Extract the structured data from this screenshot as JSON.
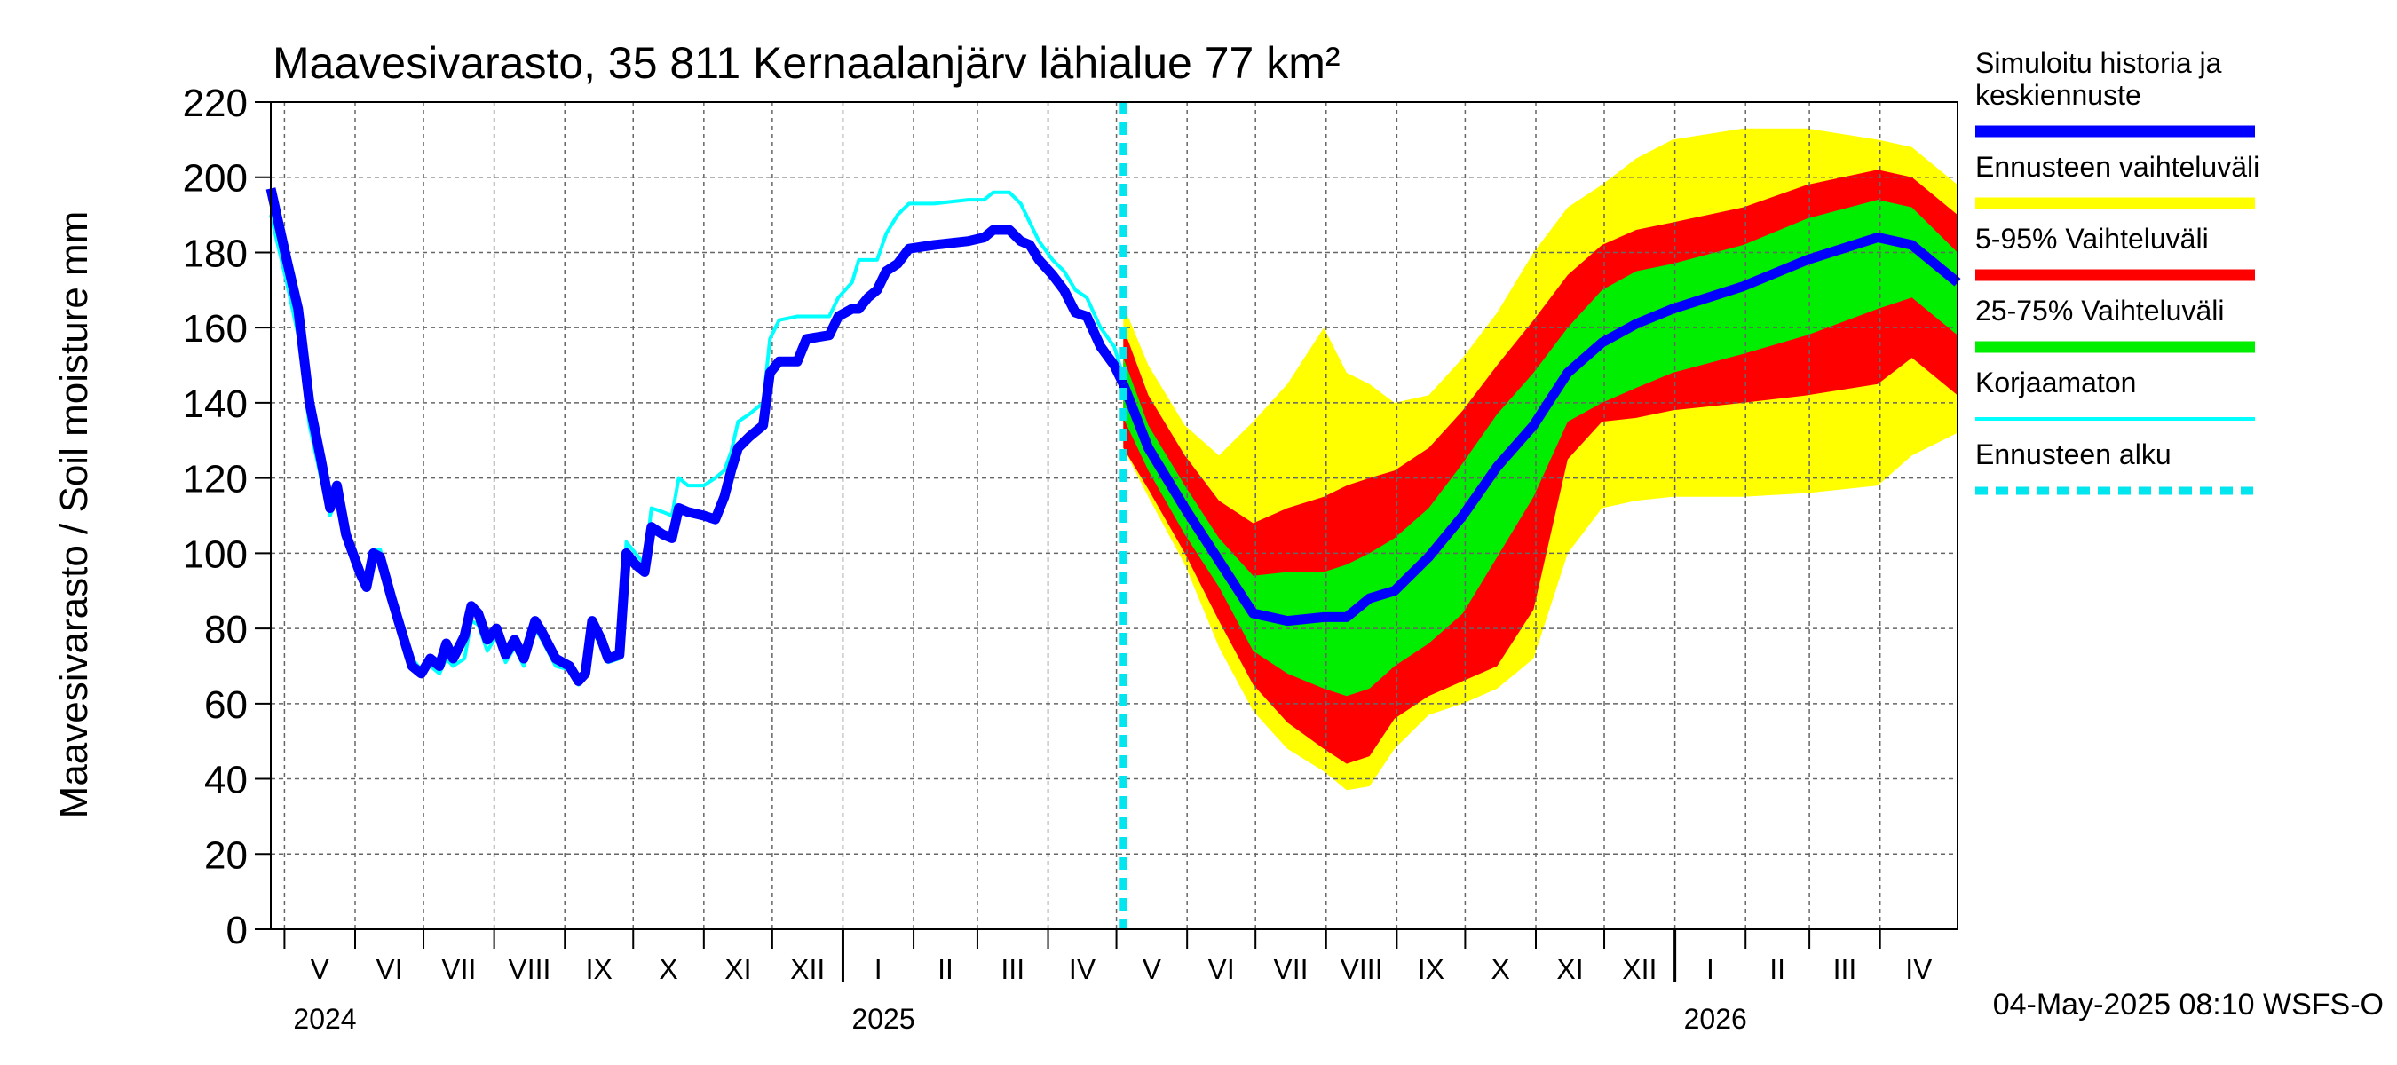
{
  "chart_data": {
    "type": "area",
    "title": "Maavesivarasto, 35 811 Kernaalanjärv lähialue 77 km²",
    "ylabel": "Maavesivarasto / Soil moisture   mm",
    "ylim": [
      0,
      220
    ],
    "yticks": [
      0,
      20,
      40,
      60,
      80,
      100,
      120,
      140,
      160,
      180,
      200,
      220
    ],
    "xlim": [
      "2024-04-25",
      "2026-05-05"
    ],
    "grid": true,
    "legend_position": "right",
    "months": [
      {
        "label": "V",
        "start": "2024-05-01"
      },
      {
        "label": "VI",
        "start": "2024-06-01"
      },
      {
        "label": "VII",
        "start": "2024-07-01"
      },
      {
        "label": "VIII",
        "start": "2024-08-01"
      },
      {
        "label": "IX",
        "start": "2024-09-01"
      },
      {
        "label": "X",
        "start": "2024-10-01"
      },
      {
        "label": "XI",
        "start": "2024-11-01"
      },
      {
        "label": "XII",
        "start": "2024-12-01"
      },
      {
        "label": "I",
        "start": "2025-01-01"
      },
      {
        "label": "II",
        "start": "2025-02-01"
      },
      {
        "label": "III",
        "start": "2025-03-01"
      },
      {
        "label": "IV",
        "start": "2025-04-01"
      },
      {
        "label": "V",
        "start": "2025-05-01"
      },
      {
        "label": "VI",
        "start": "2025-06-01"
      },
      {
        "label": "VII",
        "start": "2025-07-01"
      },
      {
        "label": "VIII",
        "start": "2025-08-01"
      },
      {
        "label": "IX",
        "start": "2025-09-01"
      },
      {
        "label": "X",
        "start": "2025-10-01"
      },
      {
        "label": "XI",
        "start": "2025-11-01"
      },
      {
        "label": "XII",
        "start": "2025-12-01"
      },
      {
        "label": "I",
        "start": "2026-01-01"
      },
      {
        "label": "II",
        "start": "2026-02-01"
      },
      {
        "label": "III",
        "start": "2026-03-01"
      },
      {
        "label": "IV",
        "start": "2026-04-01"
      }
    ],
    "years": [
      {
        "label": "2024",
        "date": "2024-05-01"
      },
      {
        "label": "2025",
        "date": "2025-01-01"
      },
      {
        "label": "2026",
        "date": "2026-01-01"
      }
    ],
    "forecast_start": "2025-05-04",
    "colors": {
      "simulated": "#0000ff",
      "range_full": "#ffff00",
      "range_5_95": "#ff0000",
      "range_25_75": "#00ee00",
      "uncorrected": "#00ffff",
      "forecast_start": "#00e5ee",
      "grid": "#666666"
    },
    "legend": [
      {
        "key": "simulated",
        "label_lines": [
          "Simuloitu historia ja",
          "keskiennuste"
        ],
        "style": "thick"
      },
      {
        "key": "range_full",
        "label_lines": [
          "Ennusteen vaihteluväli"
        ],
        "style": "thick"
      },
      {
        "key": "range_5_95",
        "label_lines": [
          "5-95% Vaihteluväli"
        ],
        "style": "thick"
      },
      {
        "key": "range_25_75",
        "label_lines": [
          "25-75% Vaihteluväli"
        ],
        "style": "thick"
      },
      {
        "key": "uncorrected",
        "label_lines": [
          "Korjaamaton"
        ],
        "style": "thin"
      },
      {
        "key": "forecast_start",
        "label_lines": [
          "Ennusteen alku"
        ],
        "style": "dashed"
      }
    ],
    "history": [
      {
        "d": "2024-04-25",
        "sim": 197,
        "unc": 190
      },
      {
        "d": "2024-05-02",
        "sim": 178,
        "unc": 172
      },
      {
        "d": "2024-05-07",
        "sim": 165,
        "unc": 158
      },
      {
        "d": "2024-05-12",
        "sim": 140,
        "unc": 134
      },
      {
        "d": "2024-05-17",
        "sim": 125,
        "unc": 120
      },
      {
        "d": "2024-05-21",
        "sim": 112,
        "unc": 110
      },
      {
        "d": "2024-05-24",
        "sim": 118,
        "unc": 115
      },
      {
        "d": "2024-05-28",
        "sim": 105,
        "unc": 103
      },
      {
        "d": "2024-06-03",
        "sim": 95,
        "unc": 94
      },
      {
        "d": "2024-06-06",
        "sim": 91,
        "unc": 92
      },
      {
        "d": "2024-06-09",
        "sim": 100,
        "unc": 101
      },
      {
        "d": "2024-06-12",
        "sim": 99,
        "unc": 101
      },
      {
        "d": "2024-06-17",
        "sim": 88,
        "unc": 90
      },
      {
        "d": "2024-06-22",
        "sim": 78,
        "unc": 80
      },
      {
        "d": "2024-06-26",
        "sim": 70,
        "unc": 72
      },
      {
        "d": "2024-06-30",
        "sim": 68,
        "unc": 69
      },
      {
        "d": "2024-07-04",
        "sim": 72,
        "unc": 70
      },
      {
        "d": "2024-07-08",
        "sim": 70,
        "unc": 68
      },
      {
        "d": "2024-07-11",
        "sim": 76,
        "unc": 72
      },
      {
        "d": "2024-07-14",
        "sim": 72,
        "unc": 70
      },
      {
        "d": "2024-07-19",
        "sim": 78,
        "unc": 72
      },
      {
        "d": "2024-07-22",
        "sim": 86,
        "unc": 82
      },
      {
        "d": "2024-07-25",
        "sim": 84,
        "unc": 81
      },
      {
        "d": "2024-07-29",
        "sim": 77,
        "unc": 74
      },
      {
        "d": "2024-08-02",
        "sim": 80,
        "unc": 78
      },
      {
        "d": "2024-08-06",
        "sim": 73,
        "unc": 71
      },
      {
        "d": "2024-08-10",
        "sim": 77,
        "unc": 75
      },
      {
        "d": "2024-08-14",
        "sim": 72,
        "unc": 70
      },
      {
        "d": "2024-08-19",
        "sim": 82,
        "unc": 80
      },
      {
        "d": "2024-08-22",
        "sim": 79,
        "unc": 77
      },
      {
        "d": "2024-08-28",
        "sim": 72,
        "unc": 70
      },
      {
        "d": "2024-09-03",
        "sim": 70,
        "unc": 69
      },
      {
        "d": "2024-09-07",
        "sim": 66,
        "unc": 65
      },
      {
        "d": "2024-09-10",
        "sim": 68,
        "unc": 67
      },
      {
        "d": "2024-09-13",
        "sim": 82,
        "unc": 80
      },
      {
        "d": "2024-09-17",
        "sim": 77,
        "unc": 75
      },
      {
        "d": "2024-09-20",
        "sim": 72,
        "unc": 71
      },
      {
        "d": "2024-09-25",
        "sim": 73,
        "unc": 72
      },
      {
        "d": "2024-09-28",
        "sim": 100,
        "unc": 103
      },
      {
        "d": "2024-10-02",
        "sim": 97,
        "unc": 100
      },
      {
        "d": "2024-10-06",
        "sim": 95,
        "unc": 97
      },
      {
        "d": "2024-10-09",
        "sim": 107,
        "unc": 112
      },
      {
        "d": "2024-10-14",
        "sim": 105,
        "unc": 111
      },
      {
        "d": "2024-10-18",
        "sim": 104,
        "unc": 110
      },
      {
        "d": "2024-10-21",
        "sim": 112,
        "unc": 120
      },
      {
        "d": "2024-10-25",
        "sim": 111,
        "unc": 118
      },
      {
        "d": "2024-11-01",
        "sim": 110,
        "unc": 118
      },
      {
        "d": "2024-11-06",
        "sim": 109,
        "unc": 120
      },
      {
        "d": "2024-11-10",
        "sim": 115,
        "unc": 122
      },
      {
        "d": "2024-11-13",
        "sim": 122,
        "unc": 127
      },
      {
        "d": "2024-11-16",
        "sim": 128,
        "unc": 135
      },
      {
        "d": "2024-11-21",
        "sim": 131,
        "unc": 137
      },
      {
        "d": "2024-11-27",
        "sim": 134,
        "unc": 140
      },
      {
        "d": "2024-11-30",
        "sim": 148,
        "unc": 157
      },
      {
        "d": "2024-12-04",
        "sim": 151,
        "unc": 162
      },
      {
        "d": "2024-12-12",
        "sim": 151,
        "unc": 163
      },
      {
        "d": "2024-12-16",
        "sim": 157,
        "unc": 163
      },
      {
        "d": "2024-12-26",
        "sim": 158,
        "unc": 163
      },
      {
        "d": "2024-12-30",
        "sim": 163,
        "unc": 168
      },
      {
        "d": "2025-01-05",
        "sim": 165,
        "unc": 172
      },
      {
        "d": "2025-01-08",
        "sim": 165,
        "unc": 178
      },
      {
        "d": "2025-01-12",
        "sim": 168,
        "unc": 178
      },
      {
        "d": "2025-01-16",
        "sim": 170,
        "unc": 178
      },
      {
        "d": "2025-01-20",
        "sim": 175,
        "unc": 185
      },
      {
        "d": "2025-01-25",
        "sim": 177,
        "unc": 190
      },
      {
        "d": "2025-01-30",
        "sim": 181,
        "unc": 193
      },
      {
        "d": "2025-02-10",
        "sim": 182,
        "unc": 193
      },
      {
        "d": "2025-02-25",
        "sim": 183,
        "unc": 194
      },
      {
        "d": "2025-03-04",
        "sim": 184,
        "unc": 194
      },
      {
        "d": "2025-03-08",
        "sim": 186,
        "unc": 196
      },
      {
        "d": "2025-03-15",
        "sim": 186,
        "unc": 196
      },
      {
        "d": "2025-03-20",
        "sim": 183,
        "unc": 193
      },
      {
        "d": "2025-03-24",
        "sim": 182,
        "unc": 188
      },
      {
        "d": "2025-03-28",
        "sim": 178,
        "unc": 183
      },
      {
        "d": "2025-04-03",
        "sim": 174,
        "unc": 178
      },
      {
        "d": "2025-04-08",
        "sim": 170,
        "unc": 175
      },
      {
        "d": "2025-04-13",
        "sim": 164,
        "unc": 170
      },
      {
        "d": "2025-04-18",
        "sim": 163,
        "unc": 168
      },
      {
        "d": "2025-04-24",
        "sim": 155,
        "unc": 160
      },
      {
        "d": "2025-04-30",
        "sim": 150,
        "unc": 155
      },
      {
        "d": "2025-05-04",
        "sim": 145,
        "unc": 147
      }
    ],
    "forecast": [
      {
        "d": "2025-05-04",
        "min": 128,
        "p05": 128,
        "p25": 136,
        "med": 145,
        "p75": 152,
        "p95": 160,
        "max": 166
      },
      {
        "d": "2025-05-15",
        "min": 115,
        "p05": 117,
        "p25": 122,
        "med": 128,
        "p75": 134,
        "p95": 142,
        "max": 150
      },
      {
        "d": "2025-05-31",
        "min": 97,
        "p05": 100,
        "p25": 105,
        "med": 112,
        "p75": 118,
        "p95": 126,
        "max": 134
      },
      {
        "d": "2025-06-15",
        "min": 75,
        "p05": 82,
        "p25": 91,
        "med": 98,
        "p75": 104,
        "p95": 114,
        "max": 126
      },
      {
        "d": "2025-06-30",
        "min": 58,
        "p05": 65,
        "p25": 74,
        "med": 84,
        "p75": 94,
        "p95": 108,
        "max": 135
      },
      {
        "d": "2025-07-15",
        "min": 48,
        "p05": 55,
        "p25": 68,
        "med": 82,
        "p75": 95,
        "p95": 112,
        "max": 145
      },
      {
        "d": "2025-07-31",
        "min": 42,
        "p05": 48,
        "p25": 64,
        "med": 83,
        "p75": 95,
        "p95": 115,
        "max": 160
      },
      {
        "d": "2025-08-10",
        "min": 37,
        "p05": 44,
        "p25": 62,
        "med": 83,
        "p75": 97,
        "p95": 118,
        "max": 148
      },
      {
        "d": "2025-08-20",
        "min": 38,
        "p05": 46,
        "p25": 64,
        "med": 88,
        "p75": 100,
        "p95": 120,
        "max": 145
      },
      {
        "d": "2025-08-31",
        "min": 48,
        "p05": 56,
        "p25": 70,
        "med": 90,
        "p75": 104,
        "p95": 122,
        "max": 140
      },
      {
        "d": "2025-09-15",
        "min": 57,
        "p05": 62,
        "p25": 76,
        "med": 99,
        "p75": 112,
        "p95": 128,
        "max": 142
      },
      {
        "d": "2025-09-30",
        "min": 60,
        "p05": 66,
        "p25": 84,
        "med": 110,
        "p75": 124,
        "p95": 138,
        "max": 152
      },
      {
        "d": "2025-10-15",
        "min": 64,
        "p05": 70,
        "p25": 99,
        "med": 123,
        "p75": 137,
        "p95": 150,
        "max": 164
      },
      {
        "d": "2025-10-31",
        "min": 72,
        "p05": 85,
        "p25": 115,
        "med": 134,
        "p75": 148,
        "p95": 162,
        "max": 180
      },
      {
        "d": "2025-11-15",
        "min": 100,
        "p05": 125,
        "p25": 135,
        "med": 148,
        "p75": 160,
        "p95": 174,
        "max": 192
      },
      {
        "d": "2025-11-30",
        "min": 112,
        "p05": 135,
        "p25": 140,
        "med": 156,
        "p75": 170,
        "p95": 182,
        "max": 198
      },
      {
        "d": "2025-12-15",
        "min": 114,
        "p05": 136,
        "p25": 144,
        "med": 161,
        "p75": 175,
        "p95": 186,
        "max": 205
      },
      {
        "d": "2025-12-31",
        "min": 115,
        "p05": 138,
        "p25": 148,
        "med": 165,
        "p75": 177,
        "p95": 188,
        "max": 210
      },
      {
        "d": "2026-01-31",
        "min": 115,
        "p05": 140,
        "p25": 153,
        "med": 171,
        "p75": 182,
        "p95": 192,
        "max": 213
      },
      {
        "d": "2026-02-28",
        "min": 116,
        "p05": 142,
        "p25": 158,
        "med": 178,
        "p75": 189,
        "p95": 198,
        "max": 213
      },
      {
        "d": "2026-03-31",
        "min": 118,
        "p05": 145,
        "p25": 165,
        "med": 184,
        "p75": 194,
        "p95": 202,
        "max": 210
      },
      {
        "d": "2026-04-15",
        "min": 126,
        "p05": 152,
        "p25": 168,
        "med": 182,
        "p75": 192,
        "p95": 200,
        "max": 208
      },
      {
        "d": "2026-05-05",
        "min": 132,
        "p05": 142,
        "p25": 158,
        "med": 172,
        "p75": 180,
        "p95": 190,
        "max": 198
      }
    ]
  },
  "footer": {
    "timestamp": "04-May-2025 08:10 WSFS-O"
  }
}
